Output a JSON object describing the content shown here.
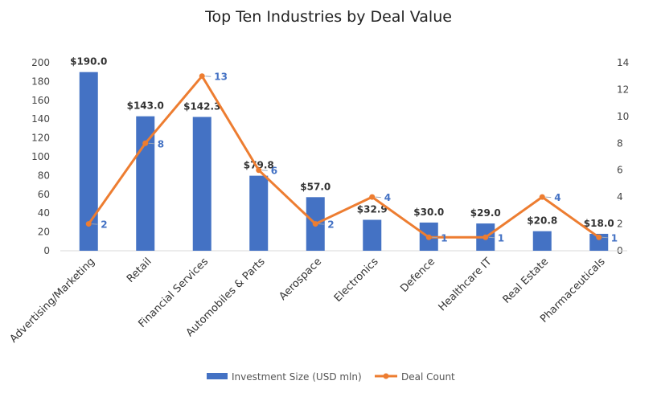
{
  "chart_data": {
    "type": "bar",
    "title": "Top Ten Industries by Deal Value",
    "categories": [
      "Advertising/Marketing",
      "Retail",
      "Financial Services",
      "Automobiles & Parts",
      "Aerospace",
      "Electronics",
      "Defence",
      "Healthcare IT",
      "Real Estate",
      "Pharmaceuticals"
    ],
    "series": [
      {
        "name": "Investment Size (USD mln)",
        "type": "bar",
        "axis": "left",
        "color": "#4472c4",
        "values": [
          190.0,
          143.0,
          142.3,
          79.8,
          57.0,
          32.9,
          30.0,
          29.0,
          20.8,
          18.0
        ],
        "labels": [
          "$190.0",
          "$143.0",
          "$142.3",
          "$79.8",
          "$57.0",
          "$32.9",
          "$30.0",
          "$29.0",
          "$20.8",
          "$18.0"
        ]
      },
      {
        "name": "Deal Count",
        "type": "line",
        "axis": "right",
        "color": "#ed7d31",
        "label_color": "#4472c4",
        "values": [
          2,
          8,
          13,
          6,
          2,
          4,
          1,
          1,
          4,
          1
        ],
        "labels": [
          "2",
          "8",
          "13",
          "6",
          "2",
          "4",
          "1",
          "1",
          "4",
          "1"
        ]
      }
    ],
    "y_left": {
      "min": 0,
      "max": 200,
      "ticks": [
        "0",
        "20",
        "40",
        "60",
        "80",
        "100",
        "120",
        "140",
        "160",
        "180",
        "200"
      ]
    },
    "y_right": {
      "min": 0,
      "max": 14,
      "ticks": [
        "0",
        "2",
        "4",
        "6",
        "8",
        "10",
        "12",
        "14"
      ]
    },
    "grid": false,
    "legend_position": "bottom"
  }
}
